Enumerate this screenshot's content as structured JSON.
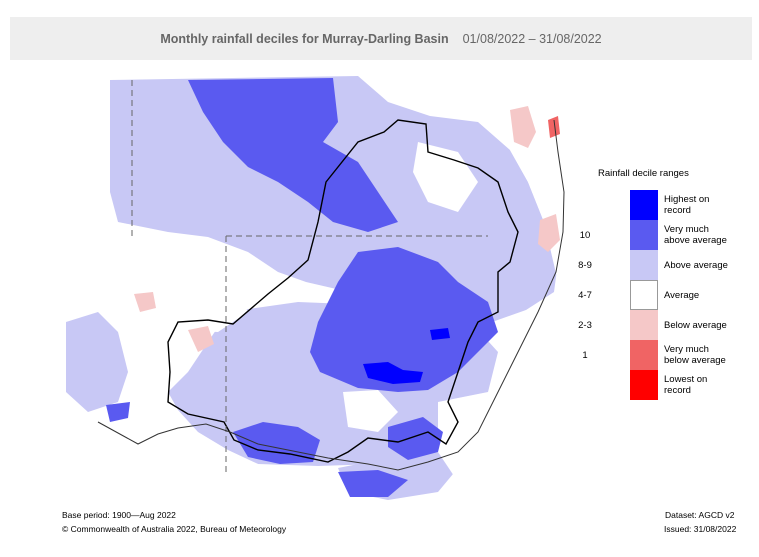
{
  "header": {
    "title": "Monthly rainfall deciles for Murray-Darling Basin",
    "date_range": "01/08/2022 – 31/08/2022"
  },
  "legend": {
    "title": "Rainfall decile ranges",
    "items": [
      {
        "decile": "",
        "label_line1": "Highest on",
        "label_line2": "record",
        "color": "#0000ff"
      },
      {
        "decile": "10",
        "label_line1": "Very much",
        "label_line2": "above average",
        "color": "#5a5af0"
      },
      {
        "decile": "8-9",
        "label_line1": "Above average",
        "label_line2": "",
        "color": "#c8c8f5"
      },
      {
        "decile": "4-7",
        "label_line1": "Average",
        "label_line2": "",
        "color": "#ffffff"
      },
      {
        "decile": "2-3",
        "label_line1": "Below average",
        "label_line2": "",
        "color": "#f5c8c8"
      },
      {
        "decile": "1",
        "label_line1": "Very much",
        "label_line2": "below average",
        "color": "#f06464"
      },
      {
        "decile": "",
        "label_line1": "Lowest on",
        "label_line2": "record",
        "color": "#ff0000"
      }
    ]
  },
  "footer": {
    "base_period": "Base period: 1900—Aug 2022",
    "dataset": "Dataset: AGCD v2",
    "copyright": "© Commonwealth of Australia 2022, Bureau of Meteorology",
    "issued": "Issued: 31/08/2022"
  }
}
